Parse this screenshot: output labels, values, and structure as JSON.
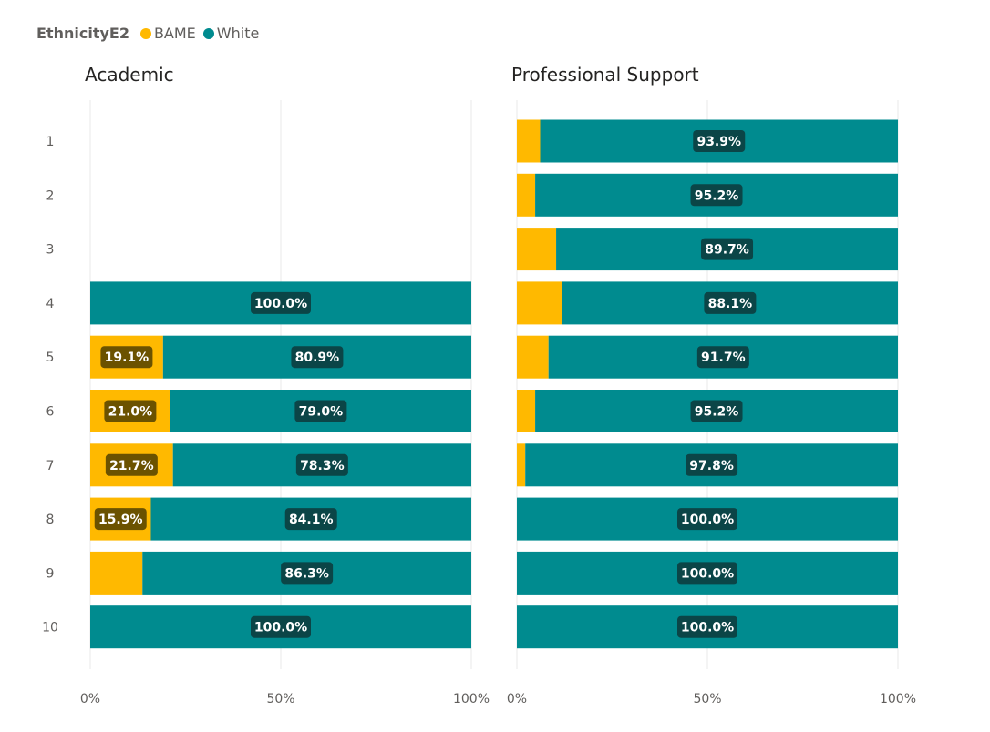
{
  "chart_data": {
    "type": "bar",
    "orientation": "horizontal",
    "stacked": "100%",
    "legend": {
      "title": "EthnicityE2",
      "placement": "top-left"
    },
    "categories": [
      "1",
      "2",
      "3",
      "4",
      "5",
      "6",
      "7",
      "8",
      "9",
      "10"
    ],
    "x_ticks": [
      "0%",
      "50%",
      "100%"
    ],
    "xlim": [
      0,
      100
    ],
    "grid": true,
    "colors": {
      "BAME": "#FFB900",
      "White": "#008B8F"
    },
    "panels": [
      {
        "title": "Academic",
        "series": [
          {
            "name": "BAME",
            "values": [
              null,
              null,
              null,
              0,
              19.1,
              21.0,
              21.7,
              15.9,
              13.7,
              0
            ]
          },
          {
            "name": "White",
            "values": [
              null,
              null,
              null,
              100.0,
              80.9,
              79.0,
              78.3,
              84.1,
              86.3,
              100.0
            ]
          }
        ]
      },
      {
        "title": "Professional Support",
        "series": [
          {
            "name": "BAME",
            "values": [
              6.1,
              4.8,
              10.3,
              11.9,
              8.3,
              4.8,
              2.2,
              0,
              0,
              0
            ]
          },
          {
            "name": "White",
            "values": [
              93.9,
              95.2,
              89.7,
              88.1,
              91.7,
              95.2,
              97.8,
              100.0,
              100.0,
              100.0
            ]
          }
        ]
      }
    ]
  }
}
